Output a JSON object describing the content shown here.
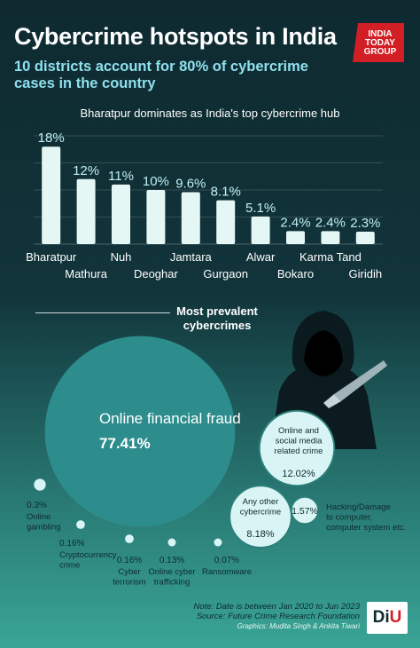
{
  "header": {
    "title": "Cybercrime hotspots in India",
    "subtitle": "10 districts account for 80% of cybercrime cases in the country",
    "logo": {
      "line1": "INDIA",
      "line2": "TODAY",
      "line3": "GROUP"
    }
  },
  "colors": {
    "bar": "#e5f7f5",
    "bar_label": "#bff0f4",
    "main_bubble": "#2c8d8c",
    "bubble_light": "#d9f4f4",
    "bubble_border": "#2b7f79",
    "logo_red": "#d21f26"
  },
  "chart_data": [
    {
      "type": "bar",
      "title": "Bharatpur dominates as India's top cybercrime hub",
      "categories": [
        "Bharatpur",
        "Mathura",
        "Nuh",
        "Deoghar",
        "Jamtara",
        "Gurgaon",
        "Alwar",
        "Bokaro",
        "Karma Tand",
        "Giridih"
      ],
      "values": [
        18,
        12,
        11,
        10,
        9.6,
        8.1,
        5.1,
        2.4,
        2.4,
        2.3
      ],
      "value_labels": [
        "18%",
        "12%",
        "11%",
        "10%",
        "9.6%",
        "8.1%",
        "5.1%",
        "2.4%",
        "2.4%",
        "2.3%"
      ],
      "xlabel": "",
      "ylabel": "",
      "ylim": [
        0,
        20
      ],
      "grid": true,
      "legend": "none"
    },
    {
      "type": "bubble",
      "title": "Most prevalent cybercrimes",
      "categories": [
        "Online financial fraud",
        "Online and social media related crime",
        "Any other cybercrime",
        "Hacking/Damage to computer, computer system etc.",
        "Online gambling",
        "Cryptocurrency crime",
        "Cyber terrorism",
        "Online cyber trafficking",
        "Ransomware"
      ],
      "values": [
        77.41,
        12.02,
        8.18,
        1.57,
        0.3,
        0.16,
        0.16,
        0.13,
        0.07
      ],
      "value_labels": [
        "77.41%",
        "12.02%",
        "8.18%",
        "1.57%",
        "0.3%",
        "0.16%",
        "0.16%",
        "0.13%",
        "0.07%"
      ],
      "label_lines": [
        [
          "Online financial fraud"
        ],
        [
          "Online and",
          "social media",
          "related crime"
        ],
        [
          "Any other",
          "cybercrime"
        ],
        [
          "Hacking/Damage",
          "to computer,",
          "computer system etc."
        ],
        [
          "Online",
          "gambling"
        ],
        [
          "Cryptocurrency",
          "crime"
        ],
        [
          "Cyber",
          "terrorism"
        ],
        [
          "Online cyber",
          "trafficking"
        ],
        [
          "Ransomware"
        ]
      ],
      "legend": "none"
    }
  ],
  "footer": {
    "note": "Note: Date is between Jan 2020 to Jun 2023",
    "source": "Source: Future Crime Research Foundation",
    "credits": "Graphics: Mudita Singh & Ankita Tiwari",
    "badge_left": "Di",
    "badge_right": "U"
  }
}
